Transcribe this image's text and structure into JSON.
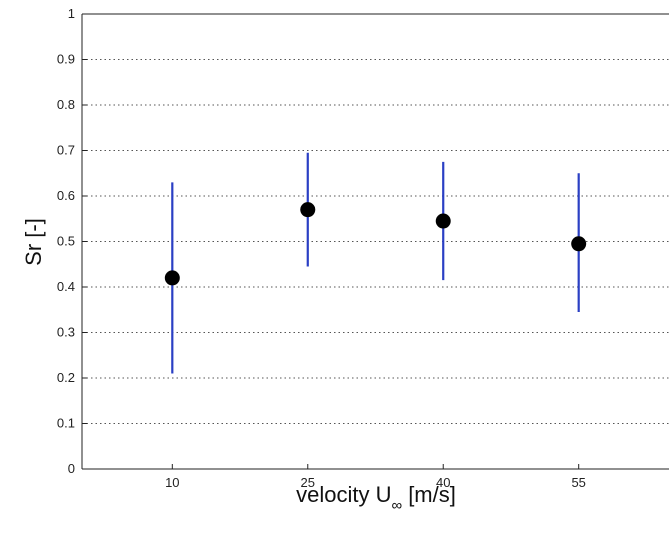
{
  "chart_data": {
    "type": "scatter",
    "title": "",
    "xlabel_main": "velocity U",
    "xlabel_sub": "∞",
    "xlabel_unit": "[m/s]",
    "ylabel": "Sr [-]",
    "x_ticks": [
      "10",
      "25",
      "40",
      "55"
    ],
    "y_ticks": [
      "0",
      "0.1",
      "0.2",
      "0.3",
      "0.4",
      "0.5",
      "0.6",
      "0.7",
      "0.8",
      "0.9",
      "1"
    ],
    "xlim": [
      0,
      65
    ],
    "ylim": [
      0,
      1
    ],
    "grid": "horizontal-dotted",
    "points": [
      {
        "x": 10,
        "y": 0.42,
        "y_low": 0.21,
        "y_high": 0.63
      },
      {
        "x": 25,
        "y": 0.57,
        "y_low": 0.445,
        "y_high": 0.695
      },
      {
        "x": 40,
        "y": 0.545,
        "y_low": 0.415,
        "y_high": 0.675
      },
      {
        "x": 55,
        "y": 0.495,
        "y_low": 0.345,
        "y_high": 0.65
      }
    ],
    "colors": {
      "marker": "#000000",
      "errorbar": "#2a3fc4",
      "grid": "#555555",
      "axis": "#222222"
    }
  }
}
